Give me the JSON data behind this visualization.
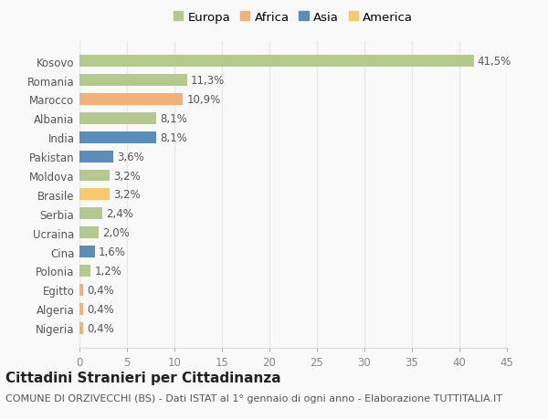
{
  "countries": [
    "Kosovo",
    "Romania",
    "Marocco",
    "Albania",
    "India",
    "Pakistan",
    "Moldova",
    "Brasile",
    "Serbia",
    "Ucraina",
    "Cina",
    "Polonia",
    "Egitto",
    "Algeria",
    "Nigeria"
  ],
  "values": [
    41.5,
    11.3,
    10.9,
    8.1,
    8.1,
    3.6,
    3.2,
    3.2,
    2.4,
    2.0,
    1.6,
    1.2,
    0.4,
    0.4,
    0.4
  ],
  "labels": [
    "41,5%",
    "11,3%",
    "10,9%",
    "8,1%",
    "8,1%",
    "3,6%",
    "3,2%",
    "3,2%",
    "2,4%",
    "2,0%",
    "1,6%",
    "1,2%",
    "0,4%",
    "0,4%",
    "0,4%"
  ],
  "colors": [
    "#b5c98e",
    "#b5c98e",
    "#f0b27a",
    "#b5c98e",
    "#5b8db8",
    "#5b8db8",
    "#b5c98e",
    "#f7c96e",
    "#b5c98e",
    "#b5c98e",
    "#5b8db8",
    "#b5c98e",
    "#f0b27a",
    "#f0b27a",
    "#f0b27a"
  ],
  "continent_labels": [
    "Europa",
    "Africa",
    "Asia",
    "America"
  ],
  "continent_colors": [
    "#b5c98e",
    "#f0b27a",
    "#5b8db8",
    "#f7c96e"
  ],
  "title": "Cittadini Stranieri per Cittadinanza",
  "subtitle": "COMUNE DI ORZIVECCHI (BS) - Dati ISTAT al 1° gennaio di ogni anno - Elaborazione TUTTITALIA.IT",
  "xlim": [
    0,
    45
  ],
  "xticks": [
    0,
    5,
    10,
    15,
    20,
    25,
    30,
    35,
    40,
    45
  ],
  "background_color": "#f9f9f9",
  "grid_color": "#e8e8e8",
  "bar_height": 0.62,
  "label_fontsize": 8.5,
  "tick_fontsize": 8.5,
  "title_fontsize": 11,
  "subtitle_fontsize": 8
}
